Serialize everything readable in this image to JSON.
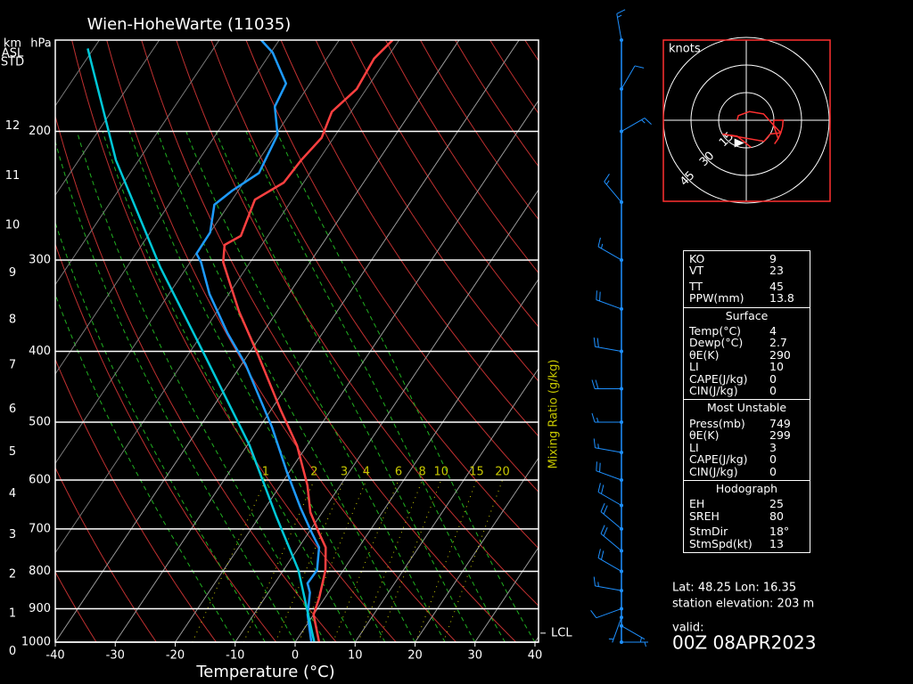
{
  "chart_data": {
    "type": "skewt",
    "title": "Wien-HoheWarte (11035)",
    "xlabel": "Temperature (°C)",
    "pressure_unit": "hPa",
    "height_unit": "km",
    "height_note": [
      "ASL",
      "STD"
    ],
    "xlim": [
      -40,
      40
    ],
    "xticks": [
      -40,
      -30,
      -20,
      -10,
      0,
      10,
      20,
      30,
      40
    ],
    "ylim": [
      1000,
      150
    ],
    "yticks": [
      1000,
      900,
      800,
      700,
      600,
      500,
      400,
      300,
      200
    ],
    "ylog": true,
    "height_ticks": [
      0,
      1,
      2,
      3,
      4,
      5,
      6,
      7,
      8,
      9,
      10,
      11,
      12
    ],
    "mixing_ratio": {
      "label": "Mixing Ratio (g/kg)",
      "values": [
        1,
        2,
        3,
        4,
        6,
        8,
        10,
        15,
        20
      ],
      "color": "#c8c800"
    },
    "series": [
      {
        "color": "#ff4040",
        "pressure": [
          1000,
          917,
          871,
          797,
          742,
          708,
          664,
          610,
          538,
          481,
          406,
          353,
          302,
          286,
          278,
          248,
          235,
          219,
          204,
          188,
          175,
          159,
          150
        ],
        "values": [
          4,
          0,
          -0.9,
          -3,
          -5.5,
          -8.3,
          -12,
          -15.5,
          -21.7,
          -28.4,
          -38.1,
          -46.3,
          -54.5,
          -56.2,
          -54.5,
          -56.2,
          -53.3,
          -52.9,
          -52,
          -53.2,
          -51.6,
          -52.1,
          -51.1
        ]
      },
      {
        "color": "#1e9bff",
        "pressure": [
          1000,
          917,
          855,
          831,
          797,
          742,
          708,
          654,
          585,
          508,
          417,
          378,
          334,
          302,
          294,
          275,
          252,
          241,
          228,
          202,
          185,
          172,
          156,
          150
        ],
        "values": [
          2.7,
          -1,
          -3.1,
          -4.5,
          -4.4,
          -6.6,
          -9.5,
          -14.2,
          -20.4,
          -27.9,
          -39.3,
          -45.8,
          -53.2,
          -58.2,
          -59.9,
          -60,
          -62.4,
          -61,
          -58.5,
          -59.7,
          -63.3,
          -64,
          -69.7,
          -73
        ]
      },
      {
        "color": "#00c8d8",
        "pressure": [
          1000,
          797,
          673,
          538,
          406,
          307,
          219,
          154
        ],
        "values": [
          3.2,
          -7.5,
          -17.2,
          -29.6,
          -47,
          -64.4,
          -83.8,
          -101
        ]
      }
    ],
    "lcl": {
      "label": "LCL",
      "pressure": 972
    },
    "wind": {
      "color": "#1e90ff",
      "pressure": [
        1000,
        950,
        925,
        900,
        850,
        800,
        750,
        700,
        650,
        600,
        550,
        500,
        450,
        400,
        350,
        300,
        250,
        200,
        175,
        150
      ],
      "direction": [
        90,
        120,
        200,
        250,
        280,
        300,
        310,
        310,
        300,
        290,
        280,
        270,
        270,
        280,
        290,
        300,
        320,
        60,
        30,
        350
      ],
      "speed": [
        5,
        5,
        5,
        10,
        15,
        20,
        20,
        20,
        20,
        20,
        15,
        15,
        20,
        20,
        20,
        15,
        15,
        15,
        10,
        15
      ]
    },
    "hodograph": {
      "label": "knots",
      "rings": [
        15,
        30,
        45
      ],
      "color": "#ff3030"
    }
  },
  "indices": {
    "sections": [
      {
        "groups": [
          [
            [
              "KO",
              9
            ],
            [
              "VT",
              23
            ]
          ],
          [
            [
              "TT",
              45
            ],
            [
              "PPW(mm)",
              13.8
            ]
          ]
        ]
      },
      {
        "title": "Surface",
        "groups": [
          [
            [
              "Temp(°C)",
              4
            ],
            [
              "Dewp(°C)",
              2.7
            ],
            [
              "θE(K)",
              290
            ],
            [
              "LI",
              10
            ],
            [
              "CAPE(J/kg)",
              0
            ],
            [
              "CIN(J/kg)",
              0
            ]
          ]
        ]
      },
      {
        "title": "Most Unstable",
        "groups": [
          [
            [
              "Press(mb)",
              749
            ],
            [
              "θE(K)",
              299
            ],
            [
              "LI",
              3
            ],
            [
              "CAPE(J/kg)",
              0
            ],
            [
              "CIN(J/kg)",
              0
            ]
          ]
        ]
      },
      {
        "title": "Hodograph",
        "groups": [
          [
            [
              "EH",
              25
            ],
            [
              "SREH",
              80
            ]
          ],
          [
            [
              "StmDir",
              {
                "value": 18,
                "label": "18°"
              }
            ],
            [
              "StmSpd(kt)",
              13
            ]
          ]
        ]
      }
    ]
  },
  "station": {
    "location": "Lat: 48.25 Lon: 16.35",
    "elevation": "station elevation: 203 m",
    "valid_label": "valid:",
    "valid": "00Z 08APR2023"
  }
}
